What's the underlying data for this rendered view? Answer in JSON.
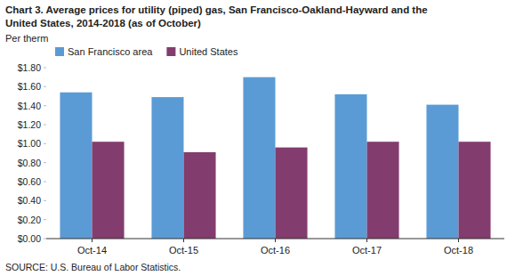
{
  "chart_data": {
    "type": "bar",
    "title": "Chart 3. Average prices for utility (piped) gas, San Francisco-Oakland-Hayward and the\nUnited States, 2014-2018  (as of October)",
    "y_label": "Per therm",
    "annotations": [
      "SOURCE: U.S. Bureau of Labor Statistics."
    ],
    "categories": [
      "Oct-14",
      "Oct-15",
      "Oct-16",
      "Oct-17",
      "Oct-18"
    ],
    "series": [
      {
        "name": "San Francisco area",
        "color": "#5B9BD5",
        "values": [
          1.54,
          1.49,
          1.7,
          1.52,
          1.41
        ]
      },
      {
        "name": "United States",
        "color": "#833C6E",
        "values": [
          1.02,
          0.91,
          0.96,
          1.02,
          1.02
        ]
      }
    ],
    "ylim": [
      0,
      1.8
    ],
    "yticks": [
      {
        "value": 0,
        "label": "$0.00"
      },
      {
        "value": 0.2,
        "label": "$0.20"
      },
      {
        "value": 0.4,
        "label": "$0.40"
      },
      {
        "value": 0.6,
        "label": "$0.60"
      },
      {
        "value": 0.8,
        "label": "$0.80"
      },
      {
        "value": 1.0,
        "label": "$1.00"
      },
      {
        "value": 1.2,
        "label": "$1.20"
      },
      {
        "value": 1.4,
        "label": "$1.40"
      },
      {
        "value": 1.6,
        "label": "$1.60"
      },
      {
        "value": 1.8,
        "label": "$1.80"
      }
    ],
    "grid": false,
    "legend": "top"
  }
}
